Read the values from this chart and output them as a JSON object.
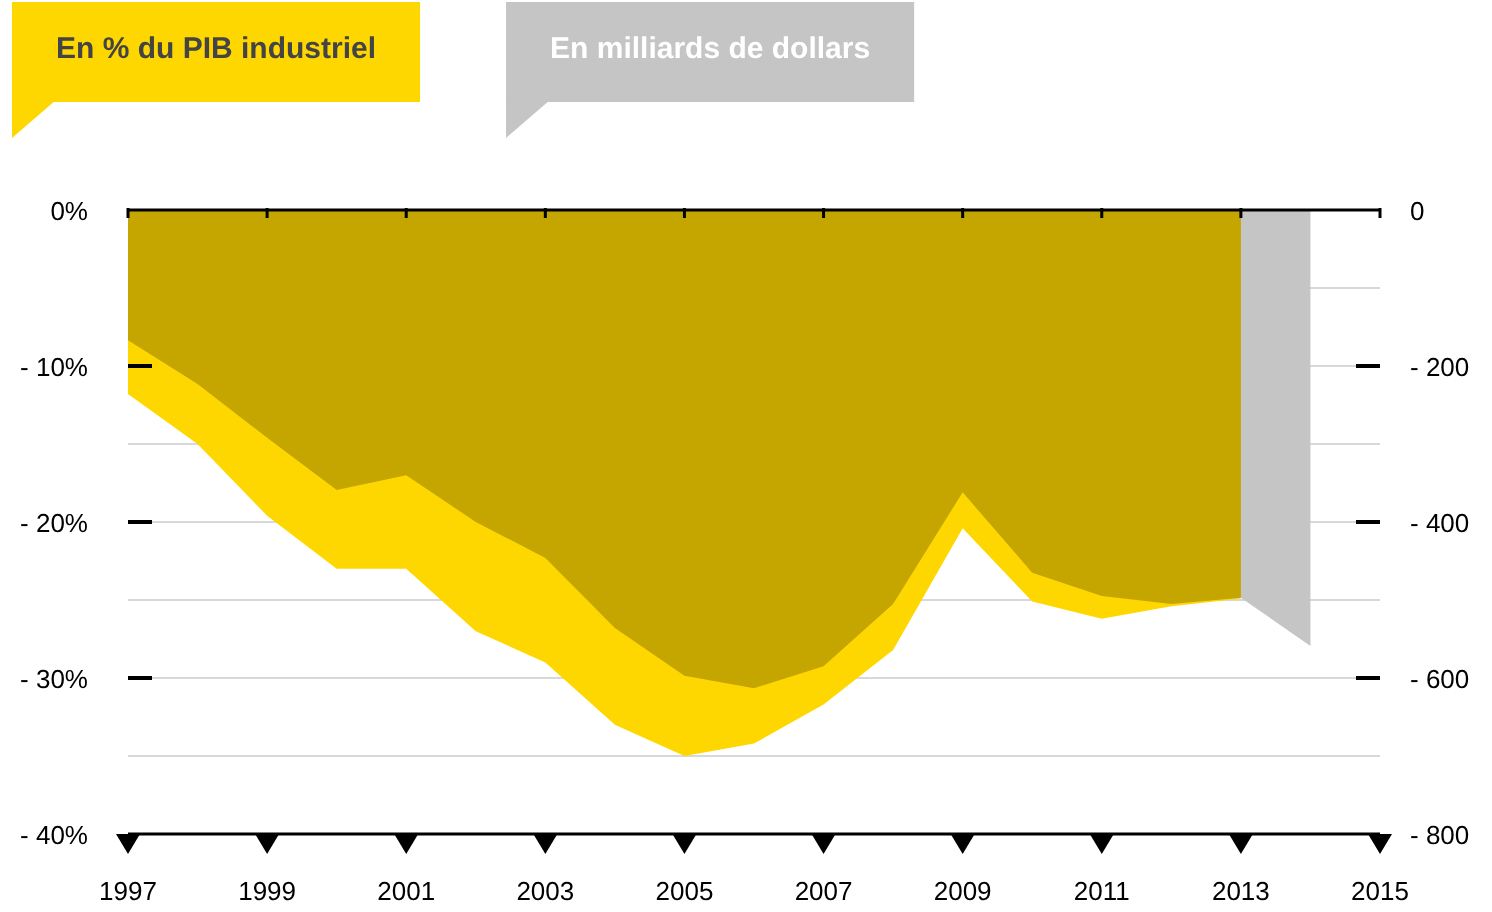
{
  "chart_data": {
    "type": "area",
    "x": [
      1997,
      1998,
      1999,
      2000,
      2001,
      2002,
      2003,
      2004,
      2005,
      2006,
      2007,
      2008,
      2009,
      2010,
      2011,
      2012,
      2013
    ],
    "series": [
      {
        "name": "En % du PIB industriel",
        "color": "#ffd700",
        "values": [
          -11.8,
          -15,
          -19.6,
          -23,
          -23,
          -27,
          -29,
          -33,
          -35,
          -34.2,
          -31.7,
          -28.2,
          -20.4,
          -25.1,
          -26.2,
          -25.4,
          -24.9
        ]
      },
      {
        "name": "En milliards de dollars",
        "color": "#c5c5c5",
        "axis": "y2",
        "x": [
          1997,
          1998,
          1999,
          2000,
          2001,
          2002,
          2003,
          2004,
          2005,
          2006,
          2007,
          2008,
          2009,
          2010,
          2011,
          2012,
          2013,
          2014
        ],
        "values": [
          -167,
          -223,
          -292,
          -359,
          -340,
          -400,
          -446,
          -536,
          -597,
          -613,
          -585,
          -505,
          -362,
          -465,
          -495,
          -505,
          -497,
          -559
        ]
      }
    ],
    "xlim": [
      1997,
      2015
    ],
    "xticks": [
      1997,
      1999,
      2001,
      2003,
      2005,
      2007,
      2009,
      2011,
      2013,
      2015
    ],
    "ylim": [
      -40,
      0
    ],
    "yticks": [
      {
        "value": -40,
        "label": "- 40%"
      },
      {
        "value": -35,
        "label": null
      },
      {
        "value": -30,
        "label": "- 30%"
      },
      {
        "value": -25,
        "label": null
      },
      {
        "value": -20,
        "label": "- 20%"
      },
      {
        "value": -15,
        "label": null
      },
      {
        "value": -10,
        "label": "- 10%"
      },
      {
        "value": -5,
        "label": null
      },
      {
        "value": 0,
        "label": "0%"
      }
    ],
    "y2lim": [
      -800,
      0
    ],
    "y2ticks": [
      {
        "value": -800,
        "label": "- 800"
      },
      {
        "value": -600,
        "label": "- 600"
      },
      {
        "value": -400,
        "label": "- 400"
      },
      {
        "value": -200,
        "label": "- 200"
      },
      {
        "value": 0,
        "label": "0"
      }
    ],
    "grid": "y",
    "legend": "top left"
  }
}
